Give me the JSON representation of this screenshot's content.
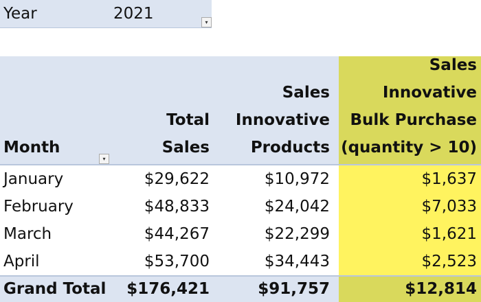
{
  "filter": {
    "label": "Year",
    "value": "2021",
    "icon": "filter-dropdown-icon"
  },
  "table": {
    "headers": {
      "month": "Month",
      "total_sales": "Total Sales",
      "innovative_products": [
        "Sales",
        "Innovative",
        "Products"
      ],
      "bulk_purchase": [
        "Sales",
        "Innovative",
        "Bulk Purchase",
        "(quantity > 10)"
      ]
    },
    "rows": [
      {
        "month": "January",
        "total": "$29,622",
        "products": "$10,972",
        "bulk": "$1,637"
      },
      {
        "month": "February",
        "total": "$48,833",
        "products": "$24,042",
        "bulk": "$7,033"
      },
      {
        "month": "March",
        "total": "$44,267",
        "products": "$22,299",
        "bulk": "$1,621"
      },
      {
        "month": "April",
        "total": "$53,700",
        "products": "$34,443",
        "bulk": "$2,523"
      }
    ],
    "grand_total": {
      "label": "Grand Total",
      "total": "$176,421",
      "products": "$91,757",
      "bulk": "$12,814"
    }
  },
  "colors": {
    "header": "#dce4f1",
    "highlight": "#fff35f",
    "highlight_header": "#d9d95c"
  }
}
